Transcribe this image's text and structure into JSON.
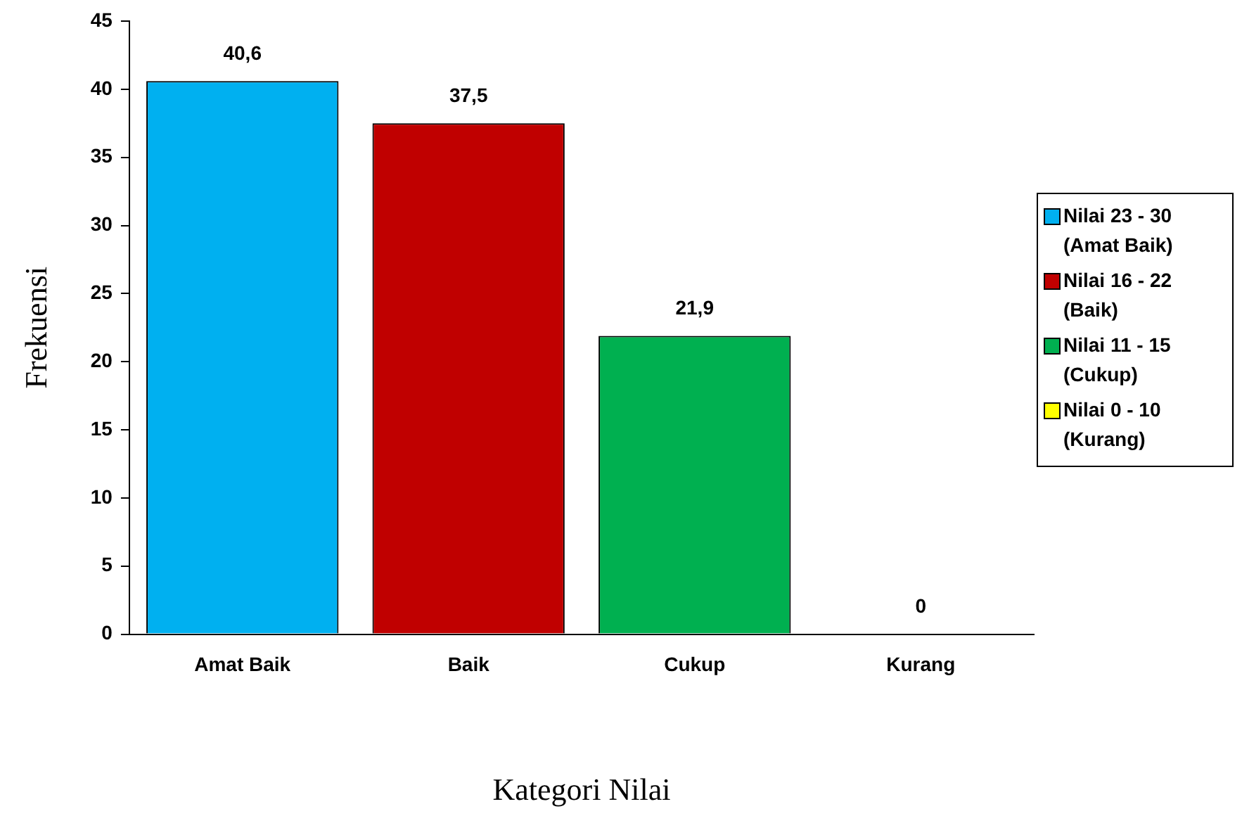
{
  "chart_data": {
    "type": "bar",
    "xlabel": "Kategori Nilai",
    "ylabel": "Frekuensi",
    "categories": [
      "Amat Baik",
      "Baik",
      "Cukup",
      "Kurang"
    ],
    "ylim": [
      0,
      45
    ],
    "yticks": [
      0,
      5,
      10,
      15,
      20,
      25,
      30,
      35,
      40,
      45
    ],
    "grid": false,
    "legend": "right",
    "series": [
      {
        "name": "Nilai 23 - 30 (Amat Baik)",
        "color": "#00b0f0",
        "values": [
          40.6,
          null,
          null,
          null
        ],
        "value_labels": [
          "40,6",
          null,
          null,
          null
        ]
      },
      {
        "name": "Nilai 16 - 22 (Baik)",
        "color": "#c00000",
        "values": [
          null,
          37.5,
          null,
          null
        ],
        "value_labels": [
          null,
          "37,5",
          null,
          null
        ]
      },
      {
        "name": "Nilai 11 - 15 (Cukup)",
        "color": "#00b050",
        "values": [
          null,
          null,
          21.9,
          null
        ],
        "value_labels": [
          null,
          null,
          "21,9",
          null
        ]
      },
      {
        "name": "Nilai 0 - 10 (Kurang)",
        "color": "#ffff00",
        "values": [
          null,
          null,
          null,
          0
        ],
        "value_labels": [
          null,
          null,
          null,
          "0"
        ]
      }
    ]
  }
}
